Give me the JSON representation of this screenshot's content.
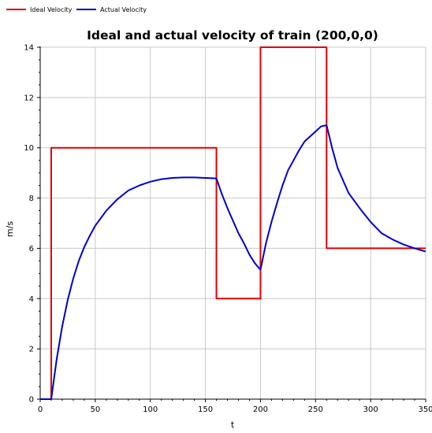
{
  "chart_data": {
    "type": "line",
    "title": "Ideal and actual velocity of train (200,0,0)",
    "xlabel": "t",
    "ylabel": "m/s",
    "xlim": [
      0,
      350
    ],
    "ylim": [
      0,
      14
    ],
    "x_ticks": [
      0,
      50,
      100,
      150,
      200,
      250,
      300,
      350
    ],
    "y_ticks": [
      0,
      2,
      4,
      6,
      8,
      10,
      12,
      14
    ],
    "grid": true,
    "legend_position": "top-left",
    "series": [
      {
        "name": "Ideal Velocity",
        "color": "#e00000",
        "points": [
          [
            0,
            0
          ],
          [
            10,
            0
          ],
          [
            10,
            10
          ],
          [
            160,
            10
          ],
          [
            160,
            4
          ],
          [
            200,
            4
          ],
          [
            200,
            14
          ],
          [
            260,
            14
          ],
          [
            260,
            6
          ],
          [
            350,
            6
          ]
        ]
      },
      {
        "name": "Actual Velocity",
        "color": "#0000cc",
        "points": [
          [
            0,
            0
          ],
          [
            10,
            0
          ],
          [
            15,
            1.6
          ],
          [
            20,
            2.9
          ],
          [
            25,
            3.95
          ],
          [
            30,
            4.8
          ],
          [
            35,
            5.5
          ],
          [
            40,
            6.05
          ],
          [
            45,
            6.5
          ],
          [
            50,
            6.9
          ],
          [
            55,
            7.2
          ],
          [
            60,
            7.5
          ],
          [
            70,
            7.95
          ],
          [
            80,
            8.3
          ],
          [
            90,
            8.5
          ],
          [
            100,
            8.65
          ],
          [
            110,
            8.75
          ],
          [
            120,
            8.8
          ],
          [
            130,
            8.82
          ],
          [
            140,
            8.82
          ],
          [
            150,
            8.8
          ],
          [
            160,
            8.78
          ],
          [
            165,
            8.15
          ],
          [
            170,
            7.6
          ],
          [
            175,
            7.1
          ],
          [
            180,
            6.6
          ],
          [
            185,
            6.2
          ],
          [
            190,
            5.75
          ],
          [
            195,
            5.4
          ],
          [
            200,
            5.15
          ],
          [
            205,
            6.2
          ],
          [
            210,
            7.05
          ],
          [
            215,
            7.8
          ],
          [
            220,
            8.5
          ],
          [
            225,
            9.1
          ],
          [
            230,
            9.5
          ],
          [
            235,
            9.9
          ],
          [
            240,
            10.25
          ],
          [
            245,
            10.45
          ],
          [
            250,
            10.65
          ],
          [
            255,
            10.85
          ],
          [
            260,
            10.9
          ],
          [
            265,
            10.0
          ],
          [
            270,
            9.2
          ],
          [
            275,
            8.7
          ],
          [
            280,
            8.2
          ],
          [
            290,
            7.6
          ],
          [
            300,
            7.05
          ],
          [
            310,
            6.6
          ],
          [
            320,
            6.35
          ],
          [
            330,
            6.15
          ],
          [
            340,
            6.0
          ],
          [
            350,
            5.87
          ]
        ]
      }
    ]
  }
}
